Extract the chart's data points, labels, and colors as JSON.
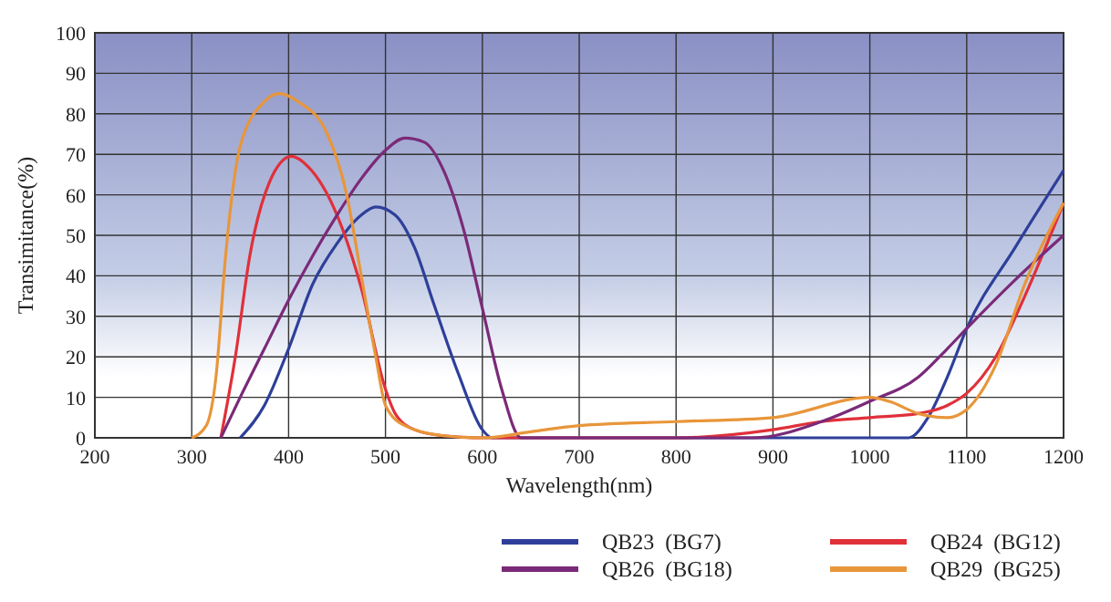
{
  "chart_data": {
    "type": "line",
    "xlabel": "Wavelength(nm)",
    "ylabel": "Transimitance(%)",
    "xlim": [
      200,
      1200
    ],
    "xticks": [
      200,
      300,
      400,
      500,
      600,
      700,
      800,
      900,
      1000,
      1100,
      1200
    ],
    "ylim": [
      0,
      100
    ],
    "yticks": [
      0,
      10,
      20,
      30,
      40,
      50,
      60,
      70,
      80,
      90,
      100
    ],
    "grid": true,
    "legend": "bottom",
    "marker": "none",
    "line_style": "solid",
    "series": [
      {
        "name": "QB23  (BG7)",
        "color": "#2e3f9a",
        "x": [
          350,
          375,
          400,
          425,
          450,
          475,
          490,
          510,
          530,
          550,
          575,
          600,
          610,
          1040,
          1060,
          1080,
          1100,
          1150,
          1200
        ],
        "values": [
          0,
          8,
          22,
          38,
          48,
          55,
          57,
          55,
          47,
          33,
          16,
          2,
          0,
          0,
          5,
          15,
          27,
          47,
          66
        ]
      },
      {
        "name": "QB24  (BG12)",
        "color": "#e0303a",
        "x": [
          330,
          345,
          360,
          380,
          403,
          420,
          450,
          475,
          500,
          510,
          530,
          560,
          600,
          800,
          900,
          950,
          1000,
          1050,
          1080,
          1100,
          1130,
          1160,
          1200
        ],
        "values": [
          0,
          20,
          45,
          63,
          69.5,
          67,
          55,
          37,
          12,
          6,
          2,
          0.5,
          0,
          0,
          2,
          4,
          5,
          6,
          8,
          11,
          20,
          35,
          58
        ]
      },
      {
        "name": "QB26  (BG18)",
        "color": "#7a2a78",
        "x": [
          330,
          350,
          375,
          400,
          425,
          450,
          475,
          500,
          520,
          540,
          560,
          580,
          600,
          620,
          640,
          880,
          950,
          1000,
          1050,
          1080,
          1100,
          1150,
          1200
        ],
        "values": [
          0,
          10,
          22,
          34,
          45,
          55,
          64,
          71,
          74,
          73,
          66,
          52,
          32,
          12,
          0,
          0,
          4,
          9,
          15,
          22,
          27,
          39,
          50
        ]
      },
      {
        "name": "QB29  (BG25)",
        "color": "#e8963a",
        "x": [
          300,
          315,
          325,
          335,
          350,
          375,
          390,
          410,
          440,
          460,
          475,
          490,
          500,
          520,
          560,
          600,
          650,
          700,
          800,
          900,
          1000,
          1020,
          1050,
          1080,
          1100,
          1130,
          1160,
          1200
        ],
        "values": [
          0,
          3,
          15,
          45,
          72,
          83,
          85,
          83,
          75,
          60,
          40,
          20,
          8,
          3,
          0.5,
          0,
          1.5,
          3,
          4,
          5,
          10,
          9,
          6,
          5,
          7,
          18,
          38,
          58
        ]
      }
    ]
  }
}
